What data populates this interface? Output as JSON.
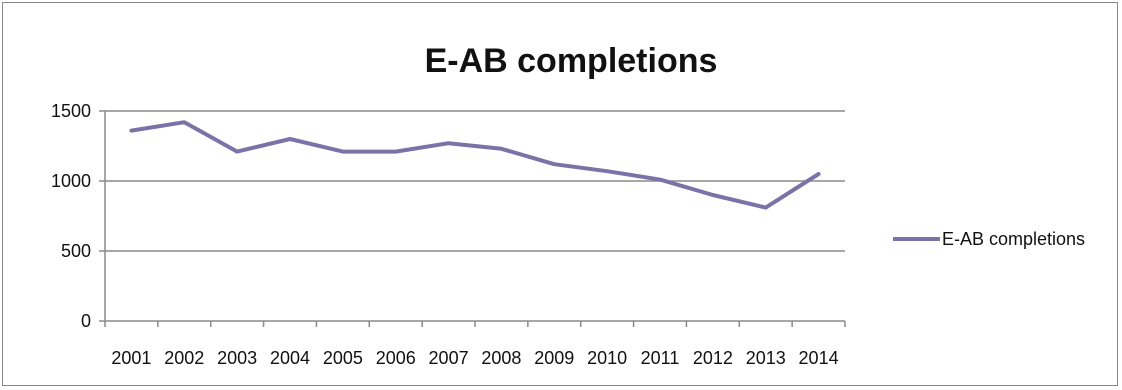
{
  "chart_data": {
    "type": "line",
    "title": "E-AB completions",
    "xlabel": "",
    "ylabel": "",
    "categories": [
      "2001",
      "2002",
      "2003",
      "2004",
      "2005",
      "2006",
      "2007",
      "2008",
      "2009",
      "2010",
      "2011",
      "2012",
      "2013",
      "2014"
    ],
    "series": [
      {
        "name": "E-AB completions",
        "values": [
          1360,
          1420,
          1210,
          1300,
          1210,
          1210,
          1270,
          1230,
          1120,
          1070,
          1010,
          900,
          810,
          1050
        ],
        "color": "#7b72a8"
      }
    ],
    "ylim": [
      0,
      1500
    ],
    "yticks": [
      "0",
      "500",
      "1000",
      "1500"
    ],
    "grid": "horizontal",
    "legend_position": "right"
  }
}
